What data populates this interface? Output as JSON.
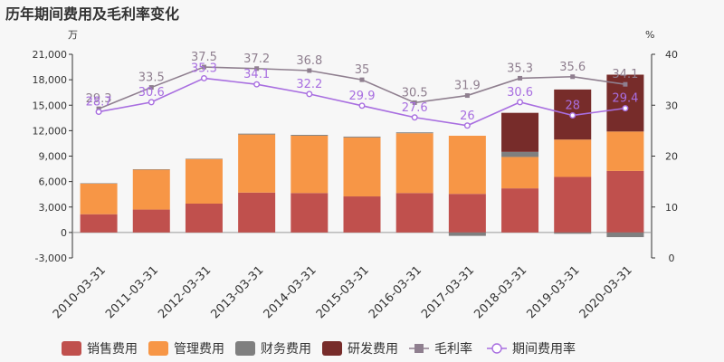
{
  "chart_data": {
    "type": "bar",
    "title": "历年期间费用及毛利率变化",
    "left_unit": "万",
    "right_unit": "%",
    "categories": [
      "2010-03-31",
      "2011-03-31",
      "2012-03-31",
      "2013-03-31",
      "2014-03-31",
      "2015-03-31",
      "2016-03-31",
      "2017-03-31",
      "2018-03-31",
      "2019-03-31",
      "2020-03-31"
    ],
    "ylim_left": [
      -3000,
      21000
    ],
    "yticks_left": [
      "-3,000",
      "0",
      "3,000",
      "6,000",
      "9,000",
      "12,000",
      "15,000",
      "18,000",
      "21,000"
    ],
    "ylim_right": [
      0,
      40
    ],
    "yticks_right": [
      "0",
      "10",
      "20",
      "30",
      "40"
    ],
    "bar_series": [
      {
        "name": "销售费用",
        "color": "#c0504d",
        "values": [
          2150,
          2700,
          3400,
          4700,
          4650,
          4250,
          4650,
          4550,
          5200,
          6550,
          7250
        ]
      },
      {
        "name": "管理费用",
        "color": "#f79646",
        "values": [
          3600,
          4700,
          5250,
          6850,
          6750,
          6950,
          7050,
          6850,
          3700,
          4400,
          4650
        ]
      },
      {
        "name": "财务费用",
        "color": "#7f7f7f",
        "values": [
          50,
          50,
          50,
          100,
          100,
          100,
          100,
          -400,
          600,
          -150,
          -550
        ]
      },
      {
        "name": "研发费用",
        "color": "#772c2a",
        "values": [
          0,
          0,
          0,
          0,
          0,
          0,
          0,
          0,
          4600,
          5900,
          6700
        ]
      }
    ],
    "line_series": [
      {
        "name": "毛利率",
        "color": "#8f7f8f",
        "values": [
          29.3,
          33.5,
          37.5,
          37.2,
          36.8,
          35,
          30.5,
          31.9,
          35.3,
          35.6,
          34.1
        ],
        "labels": [
          "29.3",
          "33.5",
          "37.5",
          "37.2",
          "36.8",
          "35",
          "30.5",
          "31.9",
          "35.3",
          "35.6",
          "34.1"
        ]
      },
      {
        "name": "期间费用率",
        "color": "#a86ee0",
        "values": [
          28.7,
          30.6,
          35.3,
          34.1,
          32.2,
          29.9,
          27.6,
          26,
          30.6,
          28,
          29.4
        ],
        "labels": [
          "28.7",
          "30.6",
          "35.3",
          "34.1",
          "32.2",
          "29.9",
          "27.6",
          "26",
          "30.6",
          "28",
          "29.4"
        ]
      }
    ],
    "legend_position": "bottom"
  }
}
